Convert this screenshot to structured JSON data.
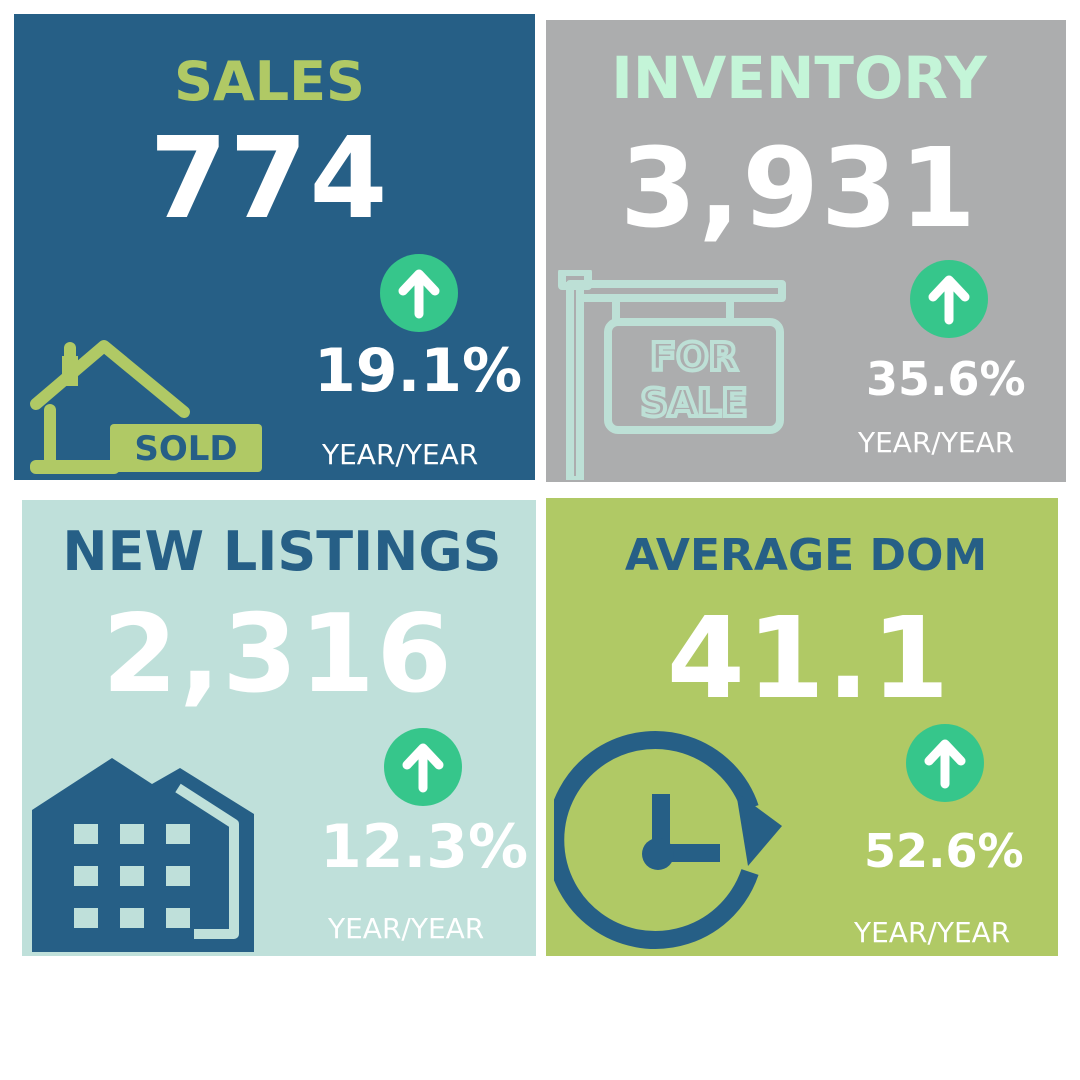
{
  "tiles": {
    "sales": {
      "title": "SALES",
      "value": "774",
      "change": "19.1%",
      "period": "YEAR/YEAR",
      "icon": "sold-house-icon",
      "sign_text": "SOLD",
      "trend": "up"
    },
    "inventory": {
      "title": "INVENTORY",
      "value": "3,931",
      "change": "35.6%",
      "period": "YEAR/YEAR",
      "icon": "for-sale-sign-icon",
      "sign_line1": "FOR",
      "sign_line2": "SALE",
      "trend": "up"
    },
    "new_listings": {
      "title": "NEW LISTINGS",
      "value": "2,316",
      "change": "12.3%",
      "period": "YEAR/YEAR",
      "icon": "buildings-icon",
      "trend": "up"
    },
    "average_dom": {
      "title": "AVERAGE DOM",
      "value": "41.1",
      "change": "52.6%",
      "period": "YEAR/YEAR",
      "icon": "clock-refresh-icon",
      "trend": "up"
    }
  },
  "colors": {
    "sales_bg": "#265f86",
    "inventory_bg": "#acadae",
    "new_listings_bg": "#bfe0da",
    "average_dom_bg": "#b0c965",
    "accent_green": "#b0c965",
    "mint": "#c4f5d8",
    "navy": "#265f86",
    "arrow_green": "#36c68b"
  }
}
